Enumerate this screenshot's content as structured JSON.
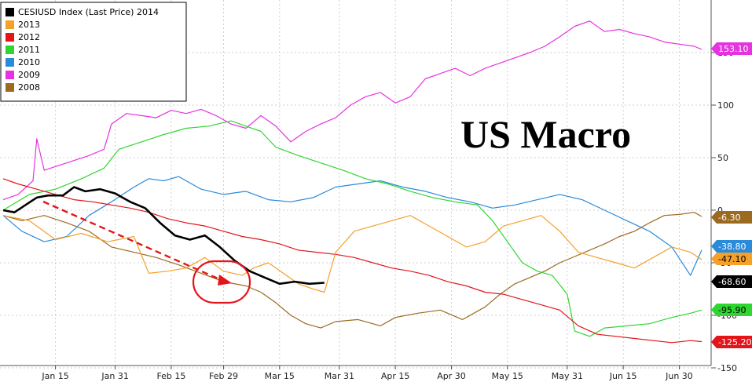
{
  "chart_data": {
    "type": "line",
    "annotation": "US Macro",
    "x_ticks": [
      "Jan 15",
      "Jan 31",
      "Feb 15",
      "Feb 29",
      "Mar 15",
      "Mar 31",
      "Apr 15",
      "Apr 30",
      "May 15",
      "May 31",
      "Jun 15",
      "Jun 30"
    ],
    "y_ticks": [
      150,
      100,
      50,
      0,
      -50,
      -100,
      -150
    ],
    "y_tick_labels": [
      "150",
      "100",
      "50",
      "0",
      "-50",
      "-100",
      "-150"
    ],
    "ylim": [
      -155,
      185
    ],
    "xlim": [
      1,
      181
    ],
    "series": [
      {
        "name": "CESIUSD Index (Last Price) 2014",
        "color": "#000000",
        "last": "-68.60",
        "last_value": -68.6,
        "width": 2.6,
        "points": [
          [
            1,
            0
          ],
          [
            4,
            -2
          ],
          [
            7,
            5
          ],
          [
            10,
            12
          ],
          [
            13,
            14
          ],
          [
            17,
            14
          ],
          [
            20,
            22
          ],
          [
            23,
            18
          ],
          [
            27,
            20
          ],
          [
            31,
            16
          ],
          [
            35,
            8
          ],
          [
            39,
            2
          ],
          [
            43,
            -12
          ],
          [
            47,
            -24
          ],
          [
            51,
            -28
          ],
          [
            55,
            -24
          ],
          [
            59,
            -35
          ],
          [
            63,
            -48
          ],
          [
            67,
            -58
          ],
          [
            71,
            -64
          ],
          [
            75,
            -70
          ],
          [
            79,
            -68
          ],
          [
            83,
            -70
          ],
          [
            87,
            -69
          ]
        ]
      },
      {
        "name": "2013",
        "color": "#f5a029",
        "last": "-47.10",
        "last_value": -47.1,
        "width": 1.2,
        "points": [
          [
            1,
            -5
          ],
          [
            8,
            -10
          ],
          [
            15,
            -28
          ],
          [
            22,
            -22
          ],
          [
            29,
            -30
          ],
          [
            36,
            -25
          ],
          [
            40,
            -60
          ],
          [
            45,
            -58
          ],
          [
            50,
            -55
          ],
          [
            55,
            -45
          ],
          [
            60,
            -58
          ],
          [
            65,
            -62
          ],
          [
            68,
            -55
          ],
          [
            72,
            -50
          ],
          [
            76,
            -60
          ],
          [
            80,
            -70
          ],
          [
            84,
            -75
          ],
          [
            87,
            -78
          ],
          [
            90,
            -40
          ],
          [
            95,
            -20
          ],
          [
            100,
            -15
          ],
          [
            105,
            -10
          ],
          [
            110,
            -5
          ],
          [
            115,
            -15
          ],
          [
            120,
            -25
          ],
          [
            125,
            -35
          ],
          [
            130,
            -30
          ],
          [
            135,
            -15
          ],
          [
            140,
            -10
          ],
          [
            145,
            -5
          ],
          [
            150,
            -20
          ],
          [
            155,
            -40
          ],
          [
            160,
            -45
          ],
          [
            165,
            -50
          ],
          [
            170,
            -55
          ],
          [
            175,
            -45
          ],
          [
            180,
            -35
          ],
          [
            185,
            -40
          ],
          [
            188,
            -47
          ]
        ]
      },
      {
        "name": "2012",
        "color": "#e3151a",
        "last": "-125.20",
        "last_value": -125.2,
        "width": 1.2,
        "points": [
          [
            1,
            30
          ],
          [
            5,
            25
          ],
          [
            10,
            20
          ],
          [
            15,
            15
          ],
          [
            20,
            10
          ],
          [
            25,
            8
          ],
          [
            30,
            5
          ],
          [
            35,
            2
          ],
          [
            40,
            -2
          ],
          [
            45,
            -8
          ],
          [
            50,
            -12
          ],
          [
            55,
            -15
          ],
          [
            60,
            -20
          ],
          [
            65,
            -25
          ],
          [
            70,
            -28
          ],
          [
            75,
            -32
          ],
          [
            80,
            -38
          ],
          [
            85,
            -40
          ],
          [
            90,
            -42
          ],
          [
            95,
            -45
          ],
          [
            100,
            -50
          ],
          [
            105,
            -55
          ],
          [
            110,
            -58
          ],
          [
            115,
            -62
          ],
          [
            120,
            -68
          ],
          [
            125,
            -72
          ],
          [
            130,
            -78
          ],
          [
            135,
            -80
          ],
          [
            140,
            -85
          ],
          [
            145,
            -90
          ],
          [
            150,
            -95
          ],
          [
            155,
            -110
          ],
          [
            160,
            -118
          ],
          [
            165,
            -120
          ],
          [
            170,
            -122
          ],
          [
            175,
            -124
          ],
          [
            180,
            -126
          ],
          [
            185,
            -124
          ],
          [
            188,
            -125
          ]
        ]
      },
      {
        "name": "2011",
        "color": "#2fd631",
        "last": "-95.90",
        "last_value": -95.9,
        "width": 1.2,
        "points": [
          [
            1,
            0
          ],
          [
            8,
            15
          ],
          [
            15,
            20
          ],
          [
            22,
            30
          ],
          [
            28,
            40
          ],
          [
            32,
            58
          ],
          [
            38,
            65
          ],
          [
            44,
            72
          ],
          [
            50,
            78
          ],
          [
            56,
            80
          ],
          [
            62,
            85
          ],
          [
            66,
            80
          ],
          [
            70,
            75
          ],
          [
            74,
            60
          ],
          [
            80,
            52
          ],
          [
            86,
            45
          ],
          [
            92,
            38
          ],
          [
            98,
            30
          ],
          [
            104,
            25
          ],
          [
            110,
            18
          ],
          [
            116,
            12
          ],
          [
            122,
            8
          ],
          [
            128,
            5
          ],
          [
            132,
            -10
          ],
          [
            136,
            -30
          ],
          [
            140,
            -50
          ],
          [
            144,
            -58
          ],
          [
            148,
            -62
          ],
          [
            152,
            -80
          ],
          [
            154,
            -115
          ],
          [
            158,
            -120
          ],
          [
            162,
            -112
          ],
          [
            168,
            -110
          ],
          [
            174,
            -108
          ],
          [
            180,
            -102
          ],
          [
            185,
            -98
          ],
          [
            188,
            -95
          ]
        ]
      },
      {
        "name": "2010",
        "color": "#2a8bdb",
        "last": "-38.80",
        "last_value": -38.8,
        "width": 1.2,
        "points": [
          [
            1,
            -5
          ],
          [
            6,
            -20
          ],
          [
            12,
            -30
          ],
          [
            18,
            -25
          ],
          [
            24,
            -5
          ],
          [
            30,
            8
          ],
          [
            36,
            22
          ],
          [
            40,
            30
          ],
          [
            44,
            28
          ],
          [
            48,
            32
          ],
          [
            54,
            20
          ],
          [
            60,
            15
          ],
          [
            66,
            18
          ],
          [
            72,
            10
          ],
          [
            78,
            8
          ],
          [
            84,
            12
          ],
          [
            90,
            22
          ],
          [
            96,
            25
          ],
          [
            102,
            28
          ],
          [
            108,
            22
          ],
          [
            114,
            18
          ],
          [
            120,
            12
          ],
          [
            126,
            8
          ],
          [
            132,
            2
          ],
          [
            138,
            5
          ],
          [
            144,
            10
          ],
          [
            150,
            15
          ],
          [
            156,
            10
          ],
          [
            162,
            0
          ],
          [
            168,
            -10
          ],
          [
            174,
            -20
          ],
          [
            180,
            -35
          ],
          [
            185,
            -62
          ],
          [
            188,
            -38
          ]
        ]
      },
      {
        "name": "2009",
        "color": "#e632e1",
        "last": "153.10",
        "last_value": 153.1,
        "width": 1.2,
        "points": [
          [
            1,
            10
          ],
          [
            5,
            15
          ],
          [
            9,
            28
          ],
          [
            10,
            68
          ],
          [
            12,
            38
          ],
          [
            18,
            45
          ],
          [
            24,
            52
          ],
          [
            28,
            58
          ],
          [
            30,
            82
          ],
          [
            34,
            92
          ],
          [
            38,
            90
          ],
          [
            42,
            88
          ],
          [
            46,
            95
          ],
          [
            50,
            92
          ],
          [
            54,
            96
          ],
          [
            58,
            90
          ],
          [
            62,
            82
          ],
          [
            66,
            78
          ],
          [
            70,
            90
          ],
          [
            74,
            80
          ],
          [
            78,
            65
          ],
          [
            82,
            75
          ],
          [
            86,
            82
          ],
          [
            90,
            88
          ],
          [
            94,
            100
          ],
          [
            98,
            108
          ],
          [
            102,
            112
          ],
          [
            106,
            102
          ],
          [
            110,
            108
          ],
          [
            114,
            125
          ],
          [
            118,
            130
          ],
          [
            122,
            135
          ],
          [
            126,
            128
          ],
          [
            130,
            135
          ],
          [
            134,
            140
          ],
          [
            138,
            145
          ],
          [
            142,
            150
          ],
          [
            146,
            156
          ],
          [
            150,
            165
          ],
          [
            154,
            175
          ],
          [
            158,
            180
          ],
          [
            162,
            170
          ],
          [
            166,
            172
          ],
          [
            170,
            168
          ],
          [
            174,
            165
          ],
          [
            178,
            160
          ],
          [
            182,
            158
          ],
          [
            186,
            156
          ],
          [
            188,
            153
          ]
        ]
      },
      {
        "name": "2008",
        "color": "#9c6a1f",
        "last": "-6.30",
        "last_value": -6.3,
        "width": 1.2,
        "points": [
          [
            1,
            -5
          ],
          [
            6,
            -10
          ],
          [
            12,
            -5
          ],
          [
            18,
            -12
          ],
          [
            24,
            -20
          ],
          [
            30,
            -35
          ],
          [
            36,
            -40
          ],
          [
            42,
            -45
          ],
          [
            48,
            -52
          ],
          [
            54,
            -60
          ],
          [
            60,
            -68
          ],
          [
            66,
            -72
          ],
          [
            70,
            -78
          ],
          [
            74,
            -88
          ],
          [
            78,
            -100
          ],
          [
            82,
            -108
          ],
          [
            86,
            -112
          ],
          [
            90,
            -106
          ],
          [
            96,
            -104
          ],
          [
            102,
            -110
          ],
          [
            106,
            -102
          ],
          [
            112,
            -98
          ],
          [
            118,
            -95
          ],
          [
            124,
            -104
          ],
          [
            130,
            -92
          ],
          [
            134,
            -80
          ],
          [
            138,
            -70
          ],
          [
            142,
            -64
          ],
          [
            146,
            -58
          ],
          [
            150,
            -50
          ],
          [
            154,
            -44
          ],
          [
            158,
            -38
          ],
          [
            162,
            -32
          ],
          [
            166,
            -25
          ],
          [
            170,
            -20
          ],
          [
            174,
            -12
          ],
          [
            178,
            -5
          ],
          [
            182,
            -4
          ],
          [
            186,
            -2
          ],
          [
            188,
            -6
          ]
        ]
      }
    ]
  }
}
